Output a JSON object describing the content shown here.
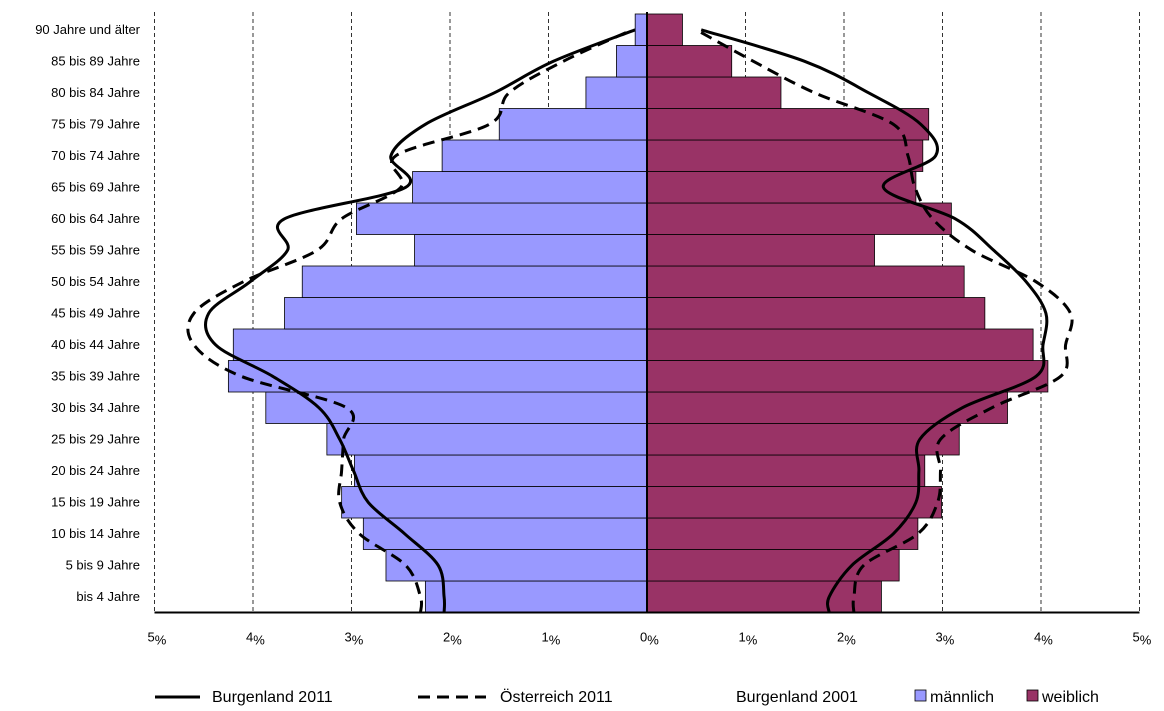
{
  "chart_data": {
    "type": "bar",
    "orientation": "horizontal-population-pyramid",
    "categories": [
      "bis 4 Jahre",
      "5 bis 9 Jahre",
      "10 bis 14 Jahre",
      "15 bis 19 Jahre",
      "20 bis 24 Jahre",
      "25 bis 29 Jahre",
      "30 bis 34 Jahre",
      "35 bis 39 Jahre",
      "40 bis 44 Jahre",
      "45 bis 49 Jahre",
      "50 bis 54 Jahre",
      "55 bis 59 Jahre",
      "60 bis 64 Jahre",
      "65 bis 69 Jahre",
      "70 bis 74 Jahre",
      "75 bis 79 Jahre",
      "80 bis 84 Jahre",
      "85 bis 89 Jahre",
      "90 Jahre und älter"
    ],
    "x_ticks": [
      {
        "num": "5",
        "unit": "%"
      },
      {
        "num": "4",
        "unit": "%"
      },
      {
        "num": "3",
        "unit": "%"
      },
      {
        "num": "2",
        "unit": "%"
      },
      {
        "num": "1",
        "unit": "%"
      },
      {
        "num": "0",
        "unit": "%"
      },
      {
        "num": "1",
        "unit": "%"
      },
      {
        "num": "2",
        "unit": "%"
      },
      {
        "num": "3",
        "unit": "%"
      },
      {
        "num": "4",
        "unit": "%"
      },
      {
        "num": "5",
        "unit": "%"
      }
    ],
    "xlim": [
      -5,
      5
    ],
    "grid": "vertical dashed",
    "legend_position": "bottom",
    "colors": {
      "male": "#9999ff",
      "female": "#993366",
      "line": "#000000"
    },
    "series": [
      {
        "name": "männlich",
        "kind": "bar",
        "side": "left",
        "values": [
          2.25,
          2.65,
          2.88,
          3.1,
          2.97,
          3.25,
          3.87,
          4.25,
          4.2,
          3.68,
          3.5,
          2.36,
          2.95,
          2.38,
          2.08,
          1.5,
          0.62,
          0.31,
          0.12
        ]
      },
      {
        "name": "weiblich",
        "kind": "bar",
        "side": "right",
        "values": [
          2.38,
          2.56,
          2.75,
          2.99,
          2.82,
          3.17,
          3.66,
          4.07,
          3.92,
          3.43,
          3.22,
          2.31,
          3.09,
          2.73,
          2.8,
          2.86,
          1.36,
          0.86,
          0.36
        ]
      },
      {
        "name": "Burgenland 2011",
        "kind": "line",
        "style": "solid",
        "left": [
          2.06,
          2.12,
          2.46,
          2.83,
          2.98,
          3.12,
          3.33,
          3.8,
          4.38,
          4.45,
          4.03,
          3.65,
          3.68,
          2.45,
          2.6,
          2.25,
          1.55,
          0.95,
          0.12
        ],
        "right": [
          1.85,
          2.08,
          2.5,
          2.73,
          2.76,
          2.77,
          3.2,
          3.95,
          4.02,
          4.05,
          3.85,
          3.52,
          3.13,
          2.4,
          2.93,
          2.78,
          2.25,
          1.6,
          0.55
        ]
      },
      {
        "name": "Österreich 2011",
        "kind": "line",
        "style": "dashed",
        "left": [
          2.3,
          2.45,
          2.92,
          3.12,
          3.1,
          3.08,
          3.05,
          4.12,
          4.6,
          4.6,
          4.1,
          3.35,
          3.1,
          2.5,
          2.55,
          1.6,
          1.4,
          0.85,
          0.15
        ],
        "right": [
          2.1,
          2.2,
          2.75,
          2.95,
          2.98,
          2.98,
          3.5,
          4.2,
          4.25,
          4.3,
          3.95,
          3.3,
          2.9,
          2.72,
          2.65,
          2.5,
          1.7,
          1.08,
          0.5
        ]
      }
    ],
    "legend": [
      {
        "label": "Burgenland 2011",
        "kind": "line-solid"
      },
      {
        "label": "Österreich 2011",
        "kind": "line-dashed"
      },
      {
        "label": "Burgenland 2001",
        "kind": "text"
      },
      {
        "label": "männlich",
        "kind": "swatch",
        "color": "#9999ff"
      },
      {
        "label": "weiblich",
        "kind": "swatch",
        "color": "#993366"
      }
    ]
  }
}
